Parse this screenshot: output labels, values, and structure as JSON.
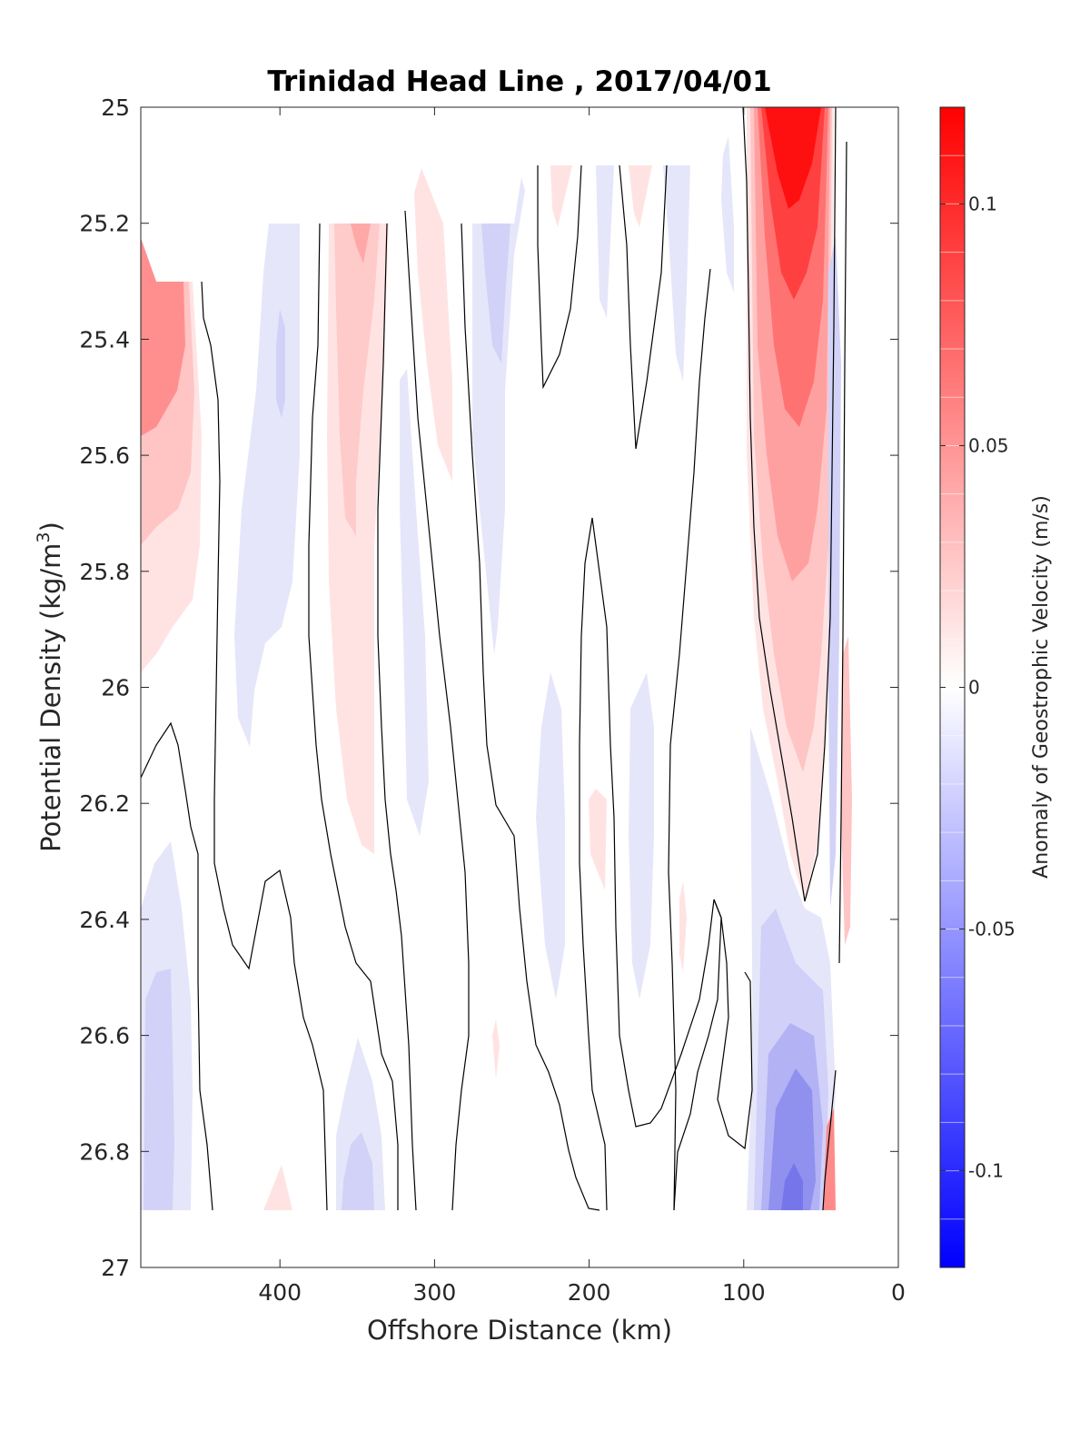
{
  "chart_data": {
    "type": "heatmap",
    "title": "Trinidad Head Line , 2017/04/01",
    "xlabel": "Offshore Distance (km)",
    "ylabel": "Potential Density (kg/m3)",
    "ylabel_parts": {
      "main": "Potential Density (kg/m",
      "superscript": "3",
      "close": ")"
    },
    "xlim": [
      490,
      0
    ],
    "ylim": [
      25,
      27
    ],
    "x_ticks": [
      400,
      300,
      200,
      100,
      0
    ],
    "y_ticks": [
      25,
      25.2,
      25.4,
      25.6,
      25.8,
      26,
      26.2,
      26.4,
      26.6,
      26.8,
      27
    ],
    "y_tick_labels": [
      "25",
      "25.2",
      "25.4",
      "25.6",
      "25.8",
      "26",
      "26.2",
      "26.4",
      "26.6",
      "26.8",
      "27"
    ],
    "colorbar": {
      "label": "Anomaly of Geostrophic Velocity (m/s)",
      "range": [
        -0.12,
        0.12
      ],
      "levels": 24,
      "ticks": [
        0.1,
        0.05,
        0,
        -0.05,
        -0.1
      ],
      "tick_labels": [
        "0.1",
        "0.05",
        "0",
        "-0.05",
        "-0.1"
      ],
      "high_color": "#ff0000",
      "mid_color": "#ffffff",
      "low_color": "#0000ff"
    },
    "features": [
      {
        "name": "nearshore jet core",
        "x": [
          100,
          40
        ],
        "y": [
          25,
          26.35
        ],
        "peak_anomaly": 0.12
      },
      {
        "name": "offshore northern positive",
        "x": [
          490,
          460
        ],
        "y": [
          25.2,
          25.95
        ],
        "peak_anomaly": 0.07
      },
      {
        "name": "mid positive band",
        "x": [
          375,
          330
        ],
        "y": [
          25.2,
          26.3
        ],
        "peak_anomaly": 0.04
      },
      {
        "name": "nearshore deep negative",
        "x": [
          100,
          45
        ],
        "y": [
          26.2,
          26.9
        ],
        "peak_anomaly": -0.05
      },
      {
        "name": "offshore deep negative",
        "x": [
          490,
          460
        ],
        "y": [
          26.3,
          26.9
        ],
        "peak_anomaly": -0.025
      }
    ]
  }
}
